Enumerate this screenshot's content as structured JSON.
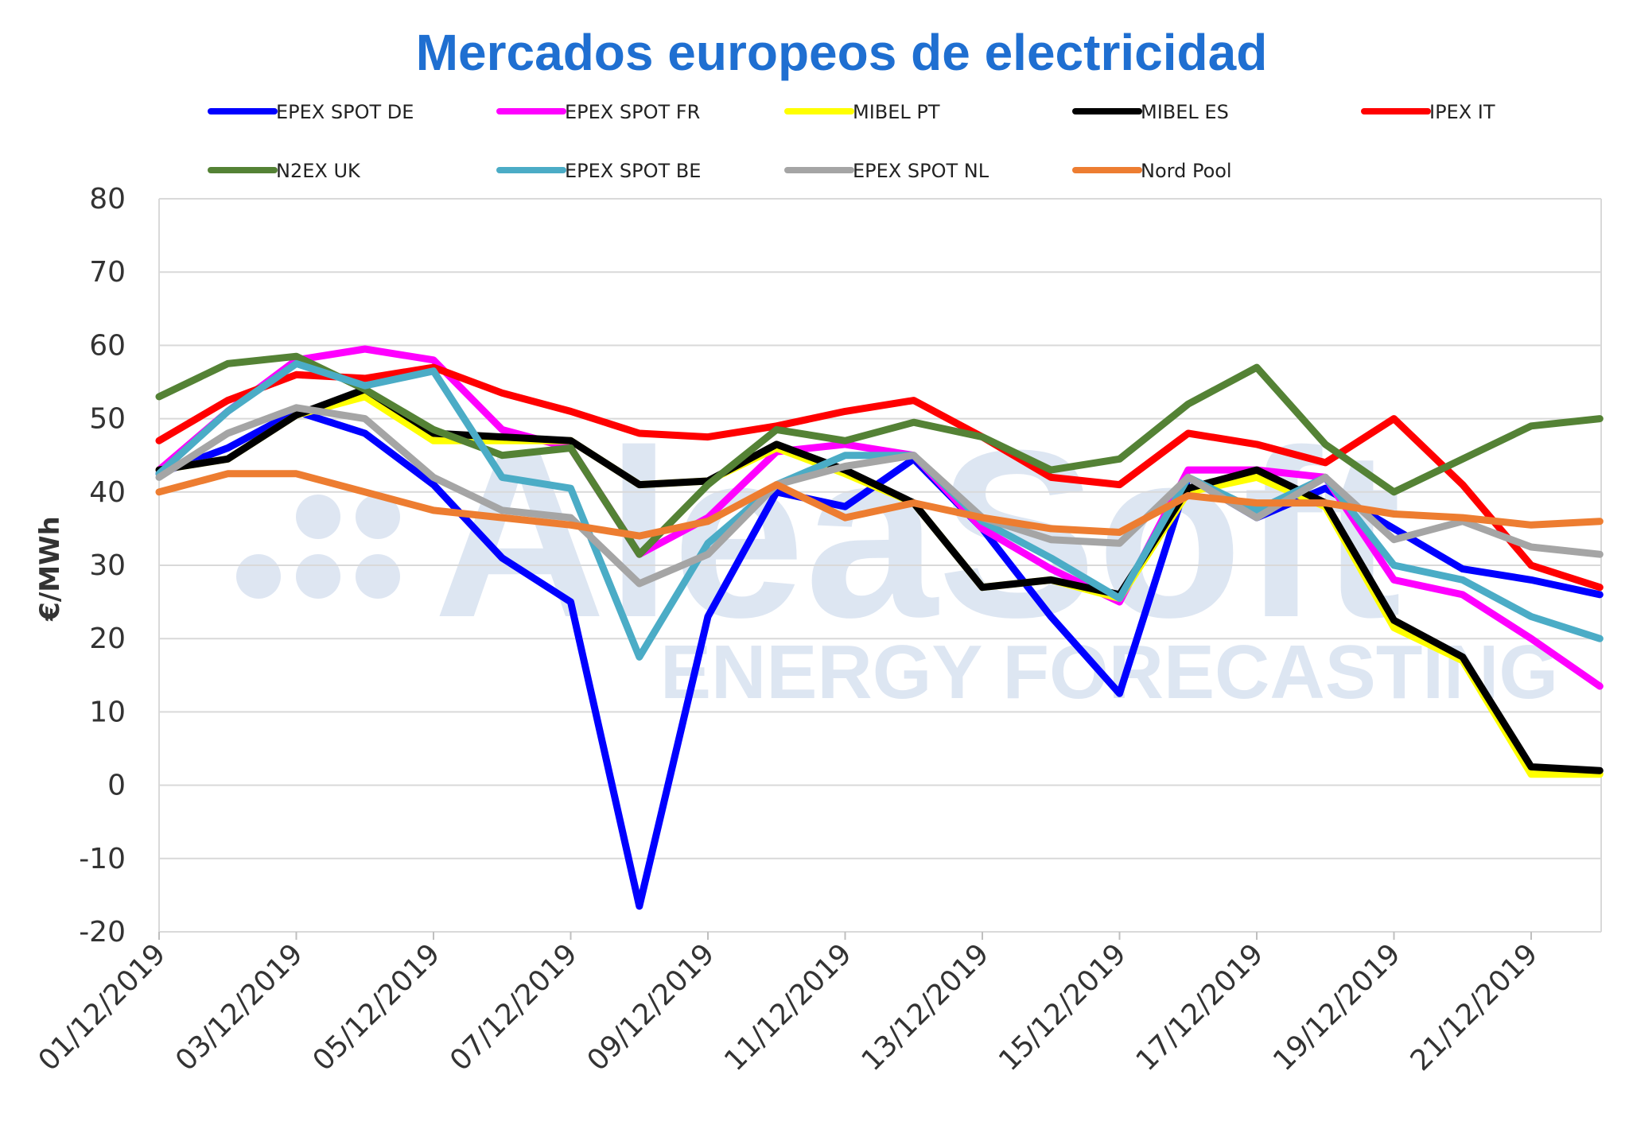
{
  "chart_data": {
    "type": "line",
    "title": "Mercados europeos de electricidad",
    "ylabel": "€/MWh",
    "xlabel": "",
    "ylim": [
      -20,
      80
    ],
    "yticks": [
      -20,
      -10,
      0,
      10,
      20,
      30,
      40,
      50,
      60,
      70,
      80
    ],
    "grid": true,
    "legend": "top",
    "x": [
      "01/12/2019",
      "02/12/2019",
      "03/12/2019",
      "04/12/2019",
      "05/12/2019",
      "06/12/2019",
      "07/12/2019",
      "08/12/2019",
      "09/12/2019",
      "10/12/2019",
      "11/12/2019",
      "12/12/2019",
      "13/12/2019",
      "14/12/2019",
      "15/12/2019",
      "16/12/2019",
      "17/12/2019",
      "18/12/2019",
      "19/12/2019",
      "20/12/2019",
      "21/12/2019",
      "22/12/2019"
    ],
    "x_tick_labels": [
      "01/12/2019",
      "03/12/2019",
      "05/12/2019",
      "07/12/2019",
      "09/12/2019",
      "11/12/2019",
      "13/12/2019",
      "15/12/2019",
      "17/12/2019",
      "19/12/2019",
      "21/12/2019"
    ],
    "series": [
      {
        "name": "EPEX SPOT DE",
        "color": "#0000ff",
        "values": [
          42.5,
          46,
          51,
          48,
          41,
          31,
          25,
          -16.5,
          23,
          40,
          38,
          44.5,
          35,
          23,
          12.5,
          42,
          36.5,
          40.5,
          35,
          29.5,
          28,
          26
        ]
      },
      {
        "name": "EPEX SPOT FR",
        "color": "#ff00ff",
        "values": [
          43,
          51,
          58,
          59.5,
          58,
          48.5,
          46,
          31.5,
          36.5,
          45.5,
          46.5,
          45,
          35,
          29.5,
          25,
          43,
          43,
          42,
          28,
          26,
          20,
          13.5
        ]
      },
      {
        "name": "MIBEL PT",
        "color": "#ffff00",
        "values": [
          43,
          44.5,
          50.5,
          53,
          47,
          47,
          47,
          41,
          41.5,
          46,
          42.5,
          38.5,
          27,
          28,
          25.5,
          40,
          42,
          38,
          21.5,
          17,
          1.5,
          1.5
        ]
      },
      {
        "name": "MIBEL ES",
        "color": "#000000",
        "values": [
          43,
          44.5,
          50.5,
          54,
          48,
          47.5,
          47,
          41,
          41.5,
          46.5,
          43,
          38.5,
          27,
          28,
          26,
          40.5,
          43,
          38.5,
          22.5,
          17.5,
          2.5,
          2
        ]
      },
      {
        "name": "IPEX IT",
        "color": "#ff0000",
        "values": [
          47,
          52.5,
          56,
          55.5,
          57,
          53.5,
          51,
          48,
          47.5,
          49,
          51,
          52.5,
          47.5,
          42,
          41,
          48,
          46.5,
          44,
          50,
          41,
          30,
          27
        ]
      },
      {
        "name": "N2EX UK",
        "color": "#548235",
        "values": [
          53,
          57.5,
          58.5,
          54,
          48.5,
          45,
          46,
          31.5,
          41,
          48.5,
          47,
          49.5,
          47.5,
          43,
          44.5,
          52,
          57,
          46.5,
          40,
          44.5,
          49,
          50
        ]
      },
      {
        "name": "EPEX SPOT BE",
        "color": "#4bacc6",
        "values": [
          42.5,
          51,
          57.5,
          54.5,
          56.5,
          42,
          40.5,
          17.5,
          33,
          41,
          45,
          45,
          36,
          31,
          25.5,
          42,
          37.5,
          42,
          30,
          28,
          23,
          20
        ]
      },
      {
        "name": "EPEX SPOT NL",
        "color": "#a5a5a5",
        "values": [
          42,
          48,
          51.5,
          50,
          42,
          37.5,
          36.5,
          27.5,
          31.5,
          41,
          43.5,
          45,
          36.5,
          33.5,
          33,
          42,
          36.5,
          42,
          33.5,
          36,
          32.5,
          31.5
        ]
      },
      {
        "name": "Nord Pool",
        "color": "#ed7d31",
        "values": [
          40,
          42.5,
          42.5,
          40,
          37.5,
          36.5,
          35.5,
          34,
          36,
          41,
          36.5,
          38.5,
          36.5,
          35,
          34.5,
          39.5,
          38.5,
          38.5,
          37,
          36.5,
          35.5,
          36
        ]
      }
    ],
    "watermark": {
      "line1": "AleaSoft",
      "line2": "ENERGY FORECASTING"
    }
  }
}
